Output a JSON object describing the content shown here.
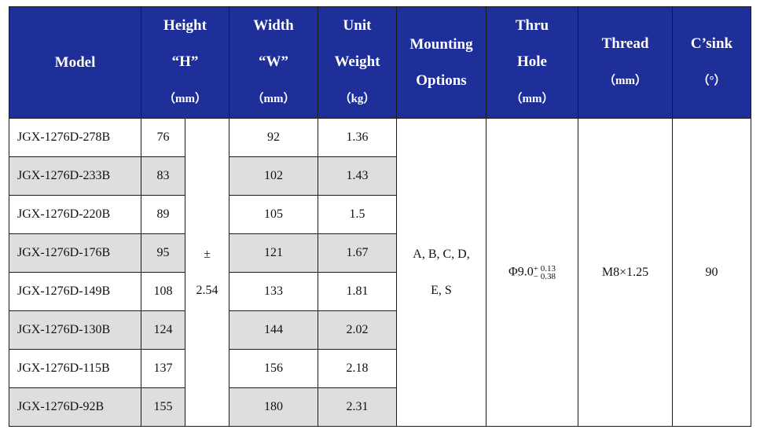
{
  "headers": {
    "model": [
      "Model"
    ],
    "height": [
      "Height",
      "“H”",
      "（mm）"
    ],
    "width": [
      "Width",
      "“W”",
      "（mm）"
    ],
    "weight": [
      "Unit",
      "Weight",
      "（kg）"
    ],
    "mounting": [
      "Mounting",
      "Options"
    ],
    "thru": [
      "Thru",
      "Hole",
      "（mm）"
    ],
    "thread": [
      "Thread",
      "（mm）"
    ],
    "csink": [
      "C’sink",
      "（°）"
    ]
  },
  "rows": [
    {
      "model": "JGX-1276D-278B",
      "height": "76",
      "width": "92",
      "weight": "1.36"
    },
    {
      "model": "JGX-1276D-233B",
      "height": "83",
      "width": "102",
      "weight": "1.43"
    },
    {
      "model": "JGX-1276D-220B",
      "height": "89",
      "width": "105",
      "weight": "1.5"
    },
    {
      "model": "JGX-1276D-176B",
      "height": "95",
      "width": "121",
      "weight": "1.67"
    },
    {
      "model": "JGX-1276D-149B",
      "height": "108",
      "width": "133",
      "weight": "1.81"
    },
    {
      "model": "JGX-1276D-130B",
      "height": "124",
      "width": "144",
      "weight": "2.02"
    },
    {
      "model": "JGX-1276D-115B",
      "height": "137",
      "width": "156",
      "weight": "2.18"
    },
    {
      "model": "JGX-1276D-92B",
      "height": "155",
      "width": "180",
      "weight": "2.31"
    }
  ],
  "tolerance": {
    "sign": "±",
    "value": "2.54"
  },
  "mounting_options": [
    "A, B, C, D,",
    "E, S"
  ],
  "thru_hole": {
    "base": "Φ9.0",
    "signs": [
      "+",
      "−"
    ],
    "upper": "0.13",
    "lower": "0.38"
  },
  "thread": "M8×1.25",
  "csink": "90",
  "colors": {
    "header_bg": "#1e2f9a",
    "header_text": "#ffffff",
    "shaded_row": "#dedede"
  }
}
